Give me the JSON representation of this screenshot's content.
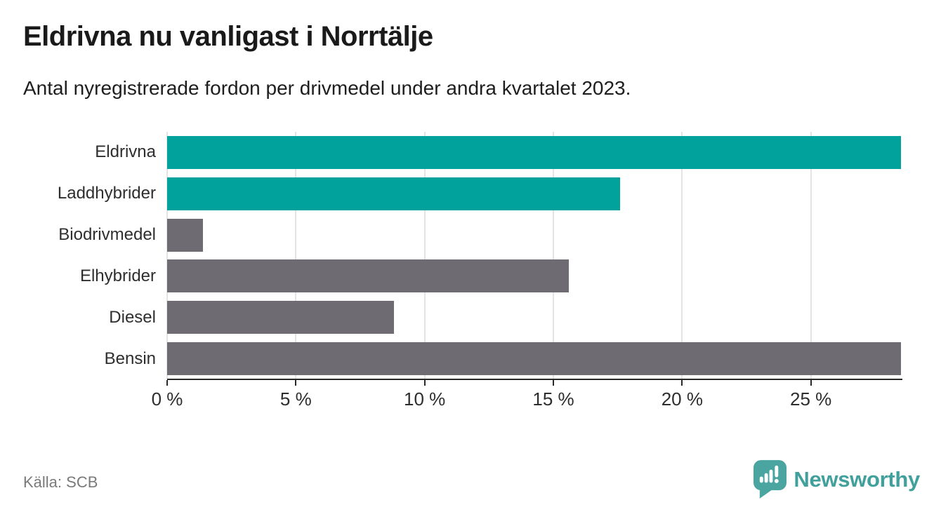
{
  "header": {
    "title": "Eldrivna nu vanligast i Norrtälje",
    "subtitle": "Antal nyregistrerade fordon per drivmedel under andra kvartalet 2023."
  },
  "chart_data": {
    "type": "bar",
    "orientation": "horizontal",
    "title": "Eldrivna nu vanligast i Norrtälje",
    "subtitle": "Antal nyregistrerade fordon per drivmedel under andra kvartalet 2023.",
    "categories": [
      "Eldrivna",
      "Laddhybrider",
      "Biodrivmedel",
      "Elhybrider",
      "Diesel",
      "Bensin"
    ],
    "values": [
      28.5,
      17.6,
      1.4,
      15.6,
      8.8,
      28.5
    ],
    "unit": "%",
    "bar_colors": [
      "#00a29b",
      "#00a29b",
      "#6e6c72",
      "#6e6c72",
      "#6e6c72",
      "#6e6c72"
    ],
    "xlim": [
      0,
      28.5
    ],
    "xticks": [
      {
        "value": 0,
        "label": "0 %"
      },
      {
        "value": 5,
        "label": "5 %"
      },
      {
        "value": 10,
        "label": "10 %"
      },
      {
        "value": 15,
        "label": "15 %"
      },
      {
        "value": 20,
        "label": "20 %"
      },
      {
        "value": 25,
        "label": "25 %"
      }
    ],
    "grid": "vertical",
    "legend": "none"
  },
  "footer": {
    "source": "Källa: SCB",
    "brand_name": "Newsworthy"
  },
  "colors": {
    "accent_teal": "#00a29b",
    "bar_gray": "#6e6c72",
    "gridline": "#e4e4e4",
    "axis": "#2a2a2a",
    "logo_teal": "#4aa5a0",
    "source_text": "#7a7a7a"
  }
}
